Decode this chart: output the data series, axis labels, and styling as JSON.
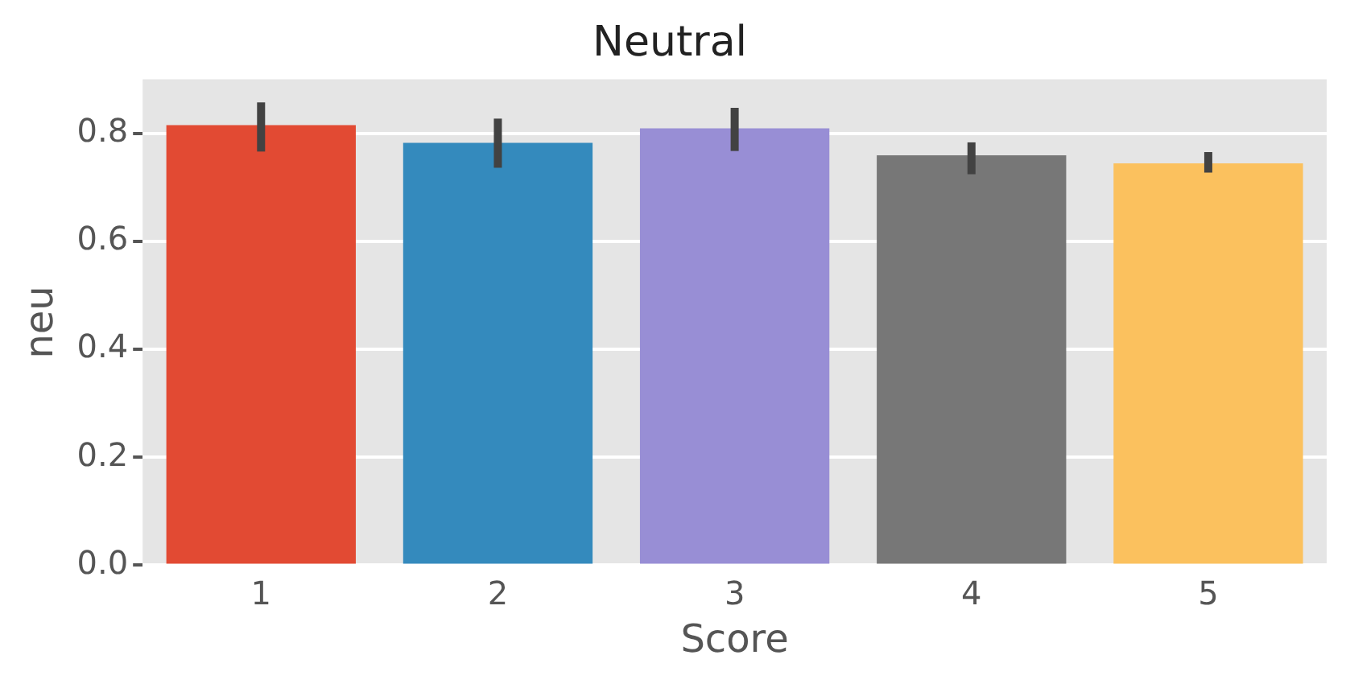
{
  "chart_data": {
    "type": "bar",
    "title": "Neutral",
    "xlabel": "Score",
    "ylabel": "neu",
    "categories": [
      "1",
      "2",
      "3",
      "4",
      "5"
    ],
    "values": [
      0.815,
      0.782,
      0.809,
      0.759,
      0.744
    ],
    "errors": [
      [
        0.766,
        0.857
      ],
      [
        0.736,
        0.827
      ],
      [
        0.767,
        0.847
      ],
      [
        0.724,
        0.783
      ],
      [
        0.727,
        0.765
      ]
    ],
    "colors": [
      "#e24a33",
      "#348abd",
      "#988ed5",
      "#777777",
      "#fbc15e"
    ],
    "ylim": [
      0,
      0.9
    ],
    "yticks": [
      {
        "value": 0,
        "label": "0.0"
      },
      {
        "value": 0.2,
        "label": "0.2"
      },
      {
        "value": 0.4,
        "label": "0.4"
      },
      {
        "value": 0.6,
        "label": "0.6"
      },
      {
        "value": 0.8,
        "label": "0.8"
      }
    ],
    "grid": true,
    "legend": false
  }
}
